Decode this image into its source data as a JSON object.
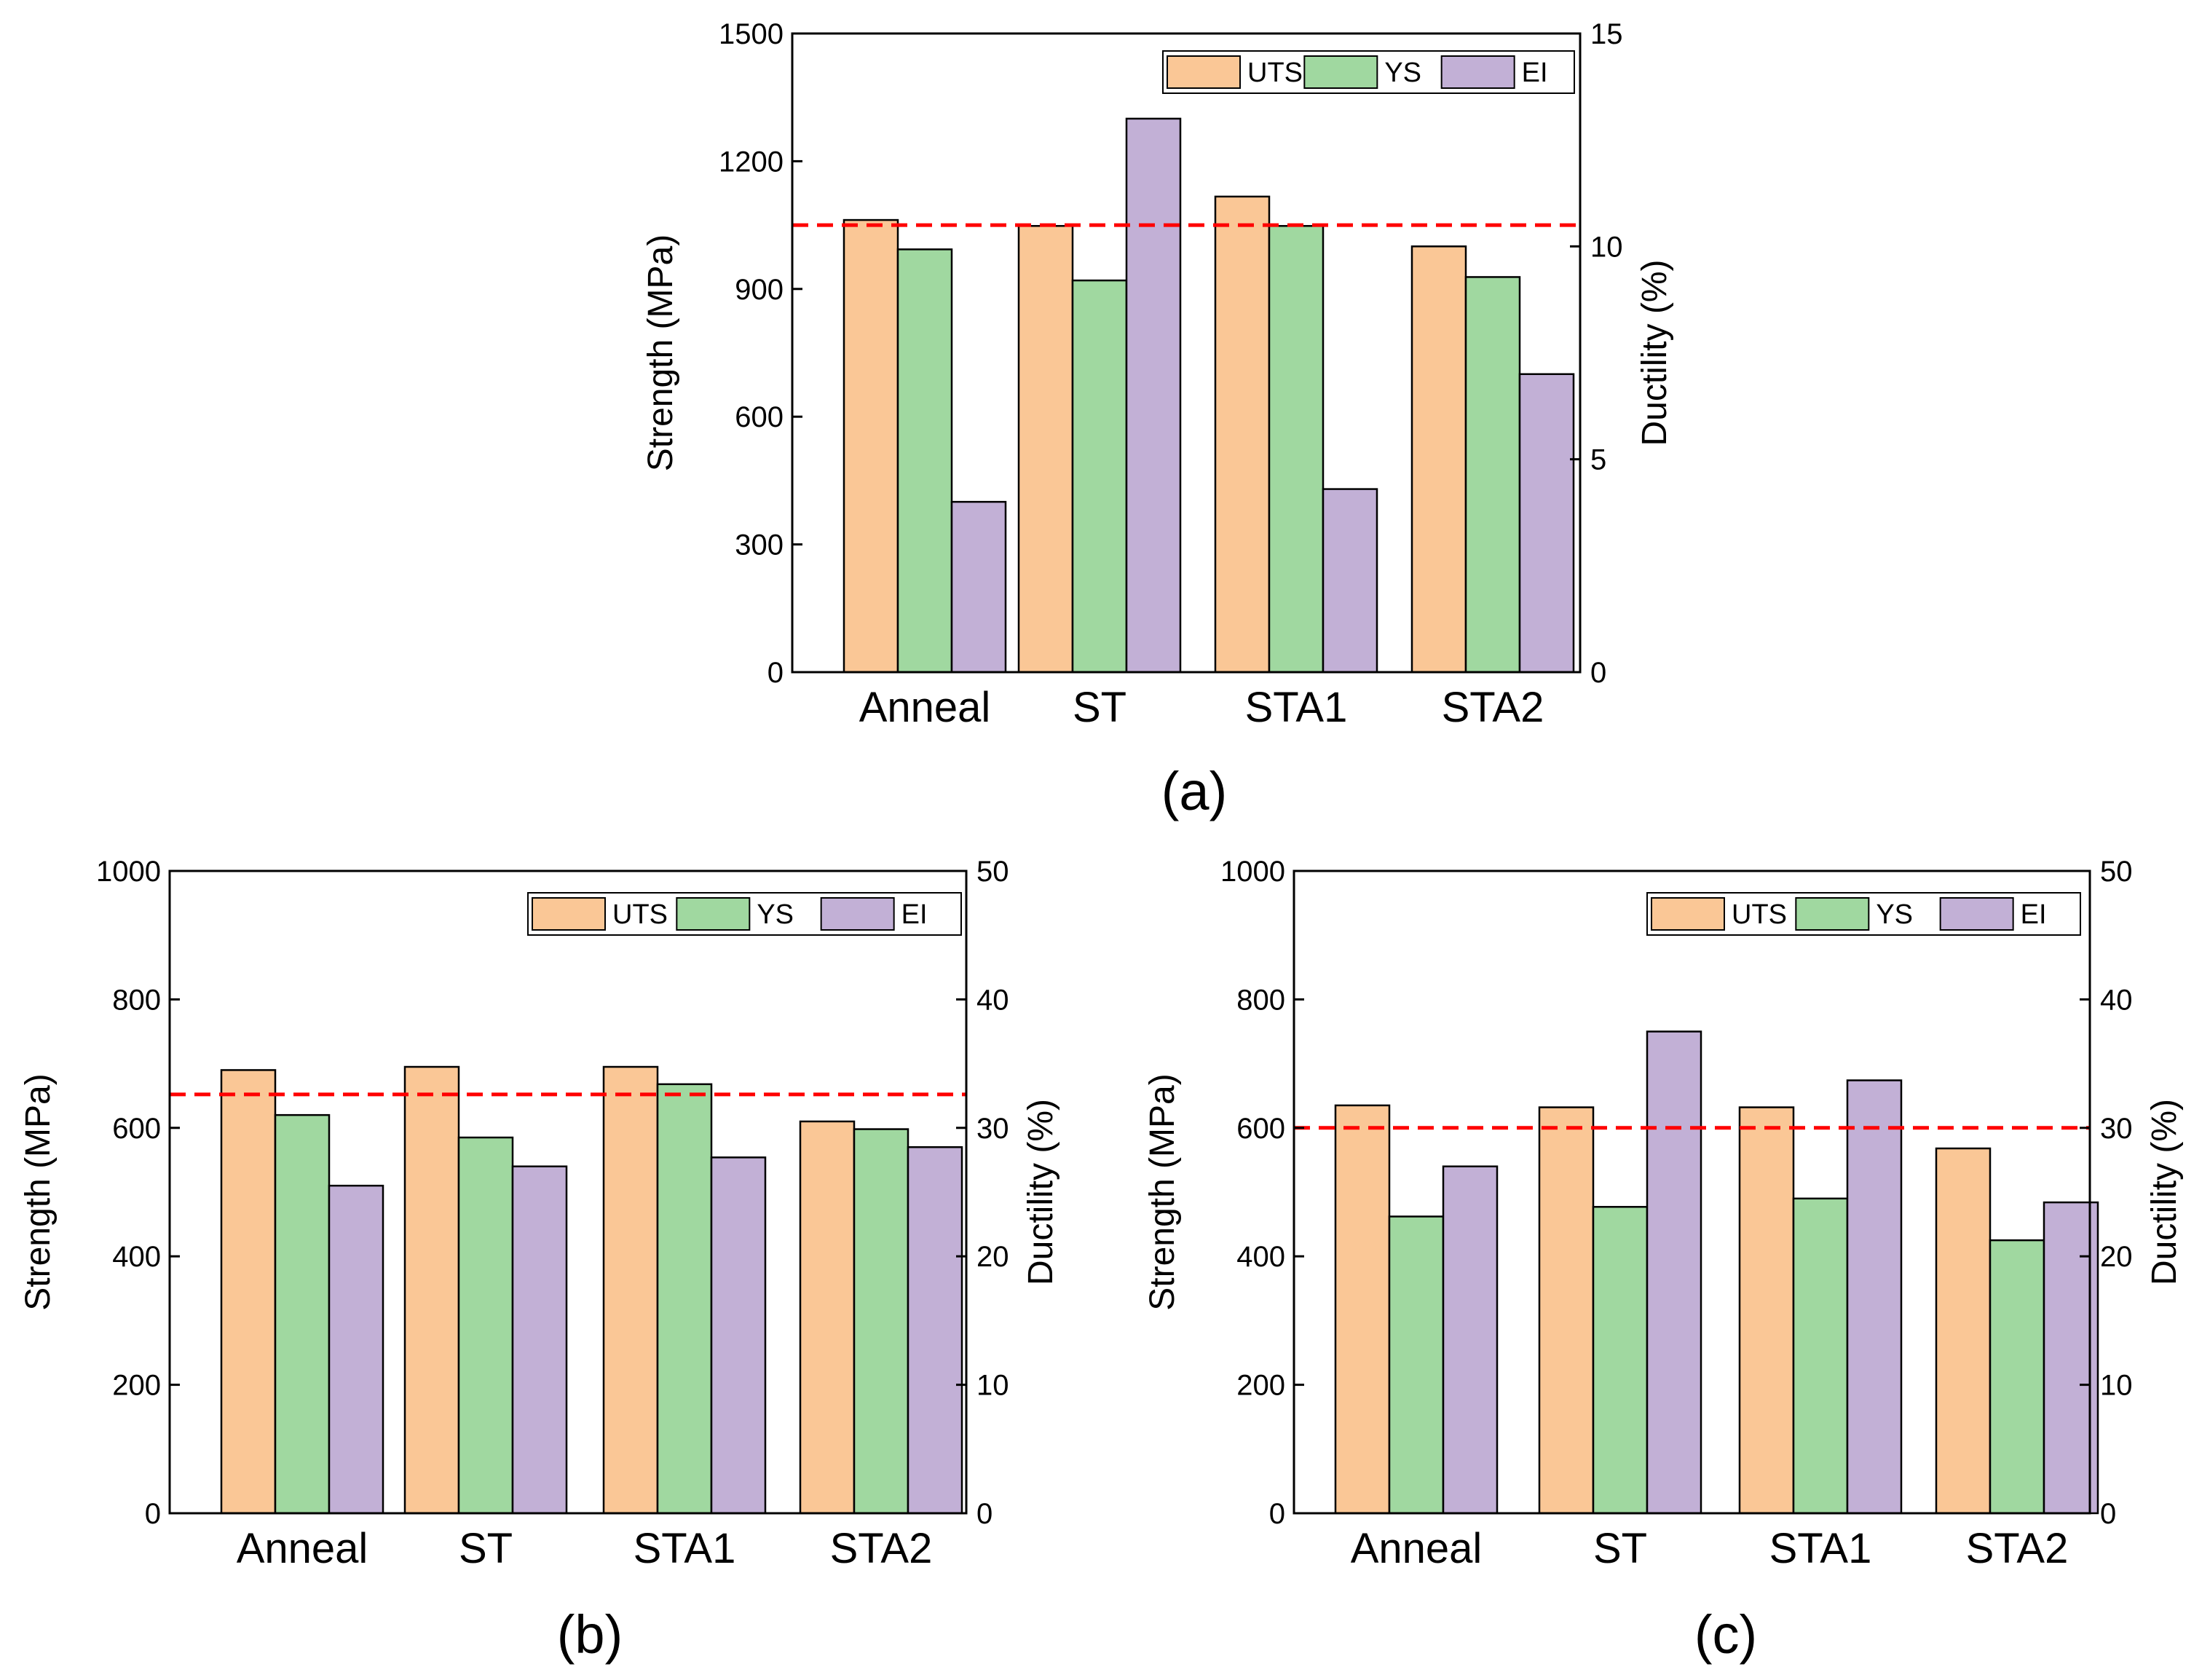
{
  "colors": {
    "UTS": "#fac796",
    "YS": "#a0d8a0",
    "EI": "#c2b0d6",
    "reference_line": "#ff0000"
  },
  "chart_data": [
    {
      "id": "a",
      "panel_label": "(a)",
      "type": "bar",
      "categories": [
        "Anneal",
        "ST",
        "STA1",
        "STA2"
      ],
      "ylabel": "Strength (MPa)",
      "y2label": "Ductility (%)",
      "ylim": [
        0,
        1500
      ],
      "yticks": [
        0,
        300,
        600,
        900,
        1200,
        1500
      ],
      "y2lim": [
        0,
        15
      ],
      "y2ticks": [
        0,
        5,
        10,
        15
      ],
      "legend_position": "top-right",
      "reference_line": 1050,
      "series": [
        {
          "name": "UTS",
          "axis": "left",
          "values": [
            1062,
            1048,
            1117,
            1000
          ]
        },
        {
          "name": "YS",
          "axis": "left",
          "values": [
            993,
            920,
            1048,
            928
          ]
        },
        {
          "name": "EI",
          "axis": "right",
          "values": [
            4.0,
            13.0,
            4.3,
            7.0
          ]
        }
      ]
    },
    {
      "id": "b",
      "panel_label": "(b)",
      "type": "bar",
      "categories": [
        "Anneal",
        "ST",
        "STA1",
        "STA2"
      ],
      "ylabel": "Strength (MPa)",
      "y2label": "Ductility (%)",
      "ylim": [
        0,
        1000
      ],
      "yticks": [
        0,
        200,
        400,
        600,
        800,
        1000
      ],
      "y2lim": [
        0,
        50
      ],
      "y2ticks": [
        0,
        10,
        20,
        30,
        40,
        50
      ],
      "legend_position": "top-right",
      "reference_line": 652,
      "series": [
        {
          "name": "UTS",
          "axis": "left",
          "values": [
            690,
            695,
            695,
            610
          ]
        },
        {
          "name": "YS",
          "axis": "left",
          "values": [
            620,
            585,
            668,
            598
          ]
        },
        {
          "name": "EI",
          "axis": "right",
          "values": [
            25.5,
            27.0,
            27.7,
            28.5
          ]
        }
      ]
    },
    {
      "id": "c",
      "panel_label": "(c)",
      "type": "bar",
      "categories": [
        "Anneal",
        "ST",
        "STA1",
        "STA2"
      ],
      "ylabel": "Strength (MPa)",
      "y2label": "Ductility (%)",
      "ylim": [
        0,
        1000
      ],
      "yticks": [
        0,
        200,
        400,
        600,
        800,
        1000
      ],
      "y2lim": [
        0,
        50
      ],
      "y2ticks": [
        0,
        10,
        20,
        30,
        40,
        50
      ],
      "legend_position": "top-right",
      "reference_line": 600,
      "series": [
        {
          "name": "UTS",
          "axis": "left",
          "values": [
            635,
            632,
            632,
            568
          ]
        },
        {
          "name": "YS",
          "axis": "left",
          "values": [
            462,
            477,
            490,
            425
          ]
        },
        {
          "name": "EI",
          "axis": "right",
          "values": [
            27.0,
            37.5,
            33.7,
            24.2
          ]
        }
      ]
    }
  ]
}
